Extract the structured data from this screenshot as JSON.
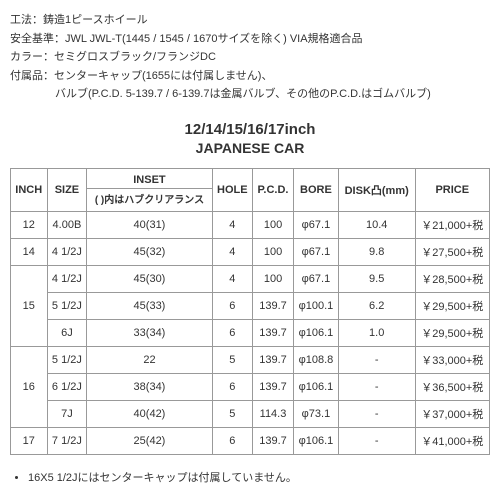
{
  "specs": {
    "method_label": "工法：",
    "method_value": "鋳造1ピースホイール",
    "safety_label": "安全基準：",
    "safety_value": "JWL JWL-T(1445 / 1545 / 1670サイズを除く) VIA規格適合品",
    "color_label": "カラー：",
    "color_value": "セミグロスブラック/フランジDC",
    "accessory_label": "付属品：",
    "accessory_value1": "センターキャップ(1655には付属しません)、",
    "accessory_value2": "バルブ(P.C.D. 5-139.7 / 6-139.7は金属バルブ、その他のP.C.D.はゴムバルブ)"
  },
  "title1": "12/14/15/16/17inch",
  "title2": "JAPANESE CAR",
  "headers": {
    "inch": "INCH",
    "size": "SIZE",
    "inset": "INSET",
    "inset_sub": "( )内はハブクリアランス",
    "hole": "HOLE",
    "pcd": "P.C.D.",
    "bore": "BORE",
    "disk": "DISK凸(mm)",
    "price": "PRICE"
  },
  "rows": [
    {
      "inch": "12",
      "inch_rowspan": 1,
      "size": "4.00B",
      "inset": "40(31)",
      "hole": "4",
      "pcd": "100",
      "bore": "φ67.1",
      "disk": "10.4",
      "price": "￥21,000+税"
    },
    {
      "inch": "14",
      "inch_rowspan": 1,
      "size": "4 1/2J",
      "inset": "45(32)",
      "hole": "4",
      "pcd": "100",
      "bore": "φ67.1",
      "disk": "9.8",
      "price": "￥27,500+税"
    },
    {
      "inch": "15",
      "inch_rowspan": 3,
      "size": "4 1/2J",
      "inset": "45(30)",
      "hole": "4",
      "pcd": "100",
      "bore": "φ67.1",
      "disk": "9.5",
      "price": "￥28,500+税"
    },
    {
      "size": "5 1/2J",
      "inset": "45(33)",
      "hole": "6",
      "pcd": "139.7",
      "bore": "φ100.1",
      "disk": "6.2",
      "price": "￥29,500+税"
    },
    {
      "size": "6J",
      "inset": "33(34)",
      "hole": "6",
      "pcd": "139.7",
      "bore": "φ106.1",
      "disk": "1.0",
      "price": "￥29,500+税"
    },
    {
      "inch": "16",
      "inch_rowspan": 3,
      "size": "5 1/2J",
      "inset": "22",
      "hole": "5",
      "pcd": "139.7",
      "bore": "φ108.8",
      "disk": "-",
      "price": "￥33,000+税"
    },
    {
      "size": "6 1/2J",
      "inset": "38(34)",
      "hole": "6",
      "pcd": "139.7",
      "bore": "φ106.1",
      "disk": "-",
      "price": "￥36,500+税"
    },
    {
      "size": "7J",
      "inset": "40(42)",
      "hole": "5",
      "pcd": "114.3",
      "bore": "φ73.1",
      "disk": "-",
      "price": "￥37,000+税"
    },
    {
      "inch": "17",
      "inch_rowspan": 1,
      "size": "7 1/2J",
      "inset": "25(42)",
      "hole": "6",
      "pcd": "139.7",
      "bore": "φ106.1",
      "disk": "-",
      "price": "￥41,000+税"
    }
  ],
  "note": "16X5 1/2Jにはセンターキャップは付属していません。"
}
